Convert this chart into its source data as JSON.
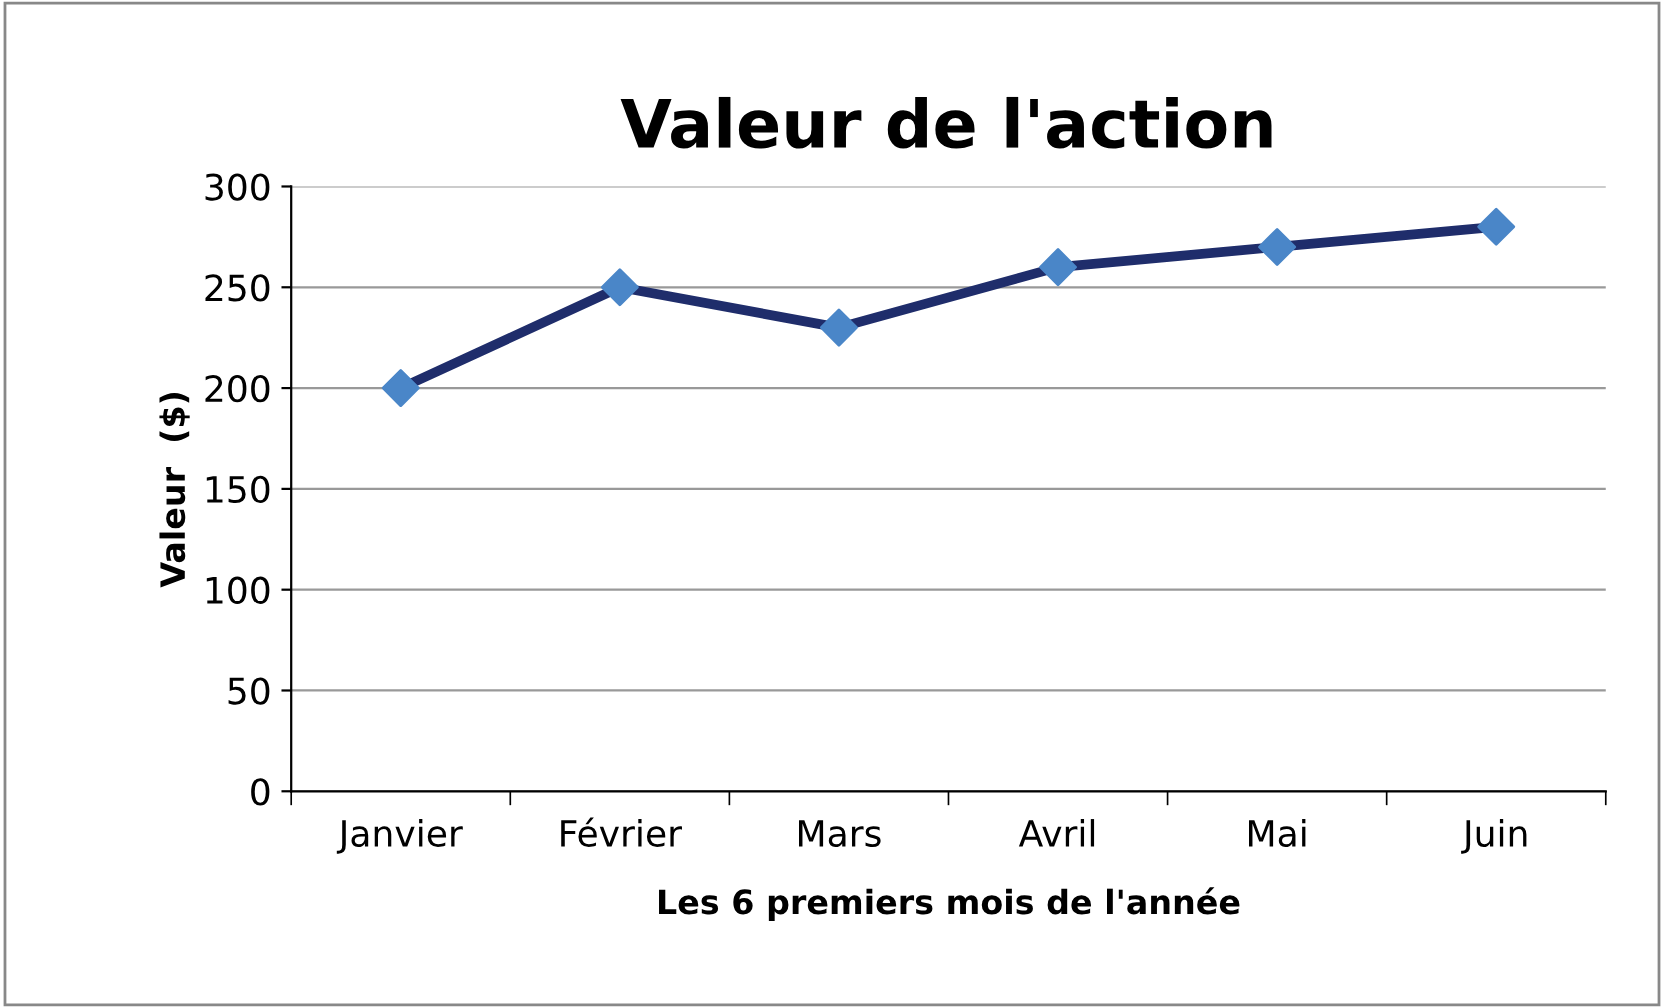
{
  "chart_data": {
    "type": "line",
    "title": "Valeur de l'action",
    "xlabel": "Les 6 premiers mois de l'année",
    "ylabel": "Valeur  ($)",
    "categories": [
      "Janvier",
      "Février",
      "Mars",
      "Avril",
      "Mai",
      "Juin"
    ],
    "series": [
      {
        "color": "#1f2d6b",
        "colors": [
          "#4a86c8",
          "#4a86c8",
          "#4a86c8",
          "#4a86c8",
          "#4a86c8",
          "#4a86c8"
        ],
        "values": [
          200,
          250,
          230,
          260,
          270,
          280
        ]
      }
    ],
    "ylim": [
      0,
      300
    ],
    "yticks": [
      0,
      50,
      100,
      150,
      200,
      250,
      300
    ],
    "grid": "y",
    "marker": "diamond",
    "line_style": "solid"
  }
}
